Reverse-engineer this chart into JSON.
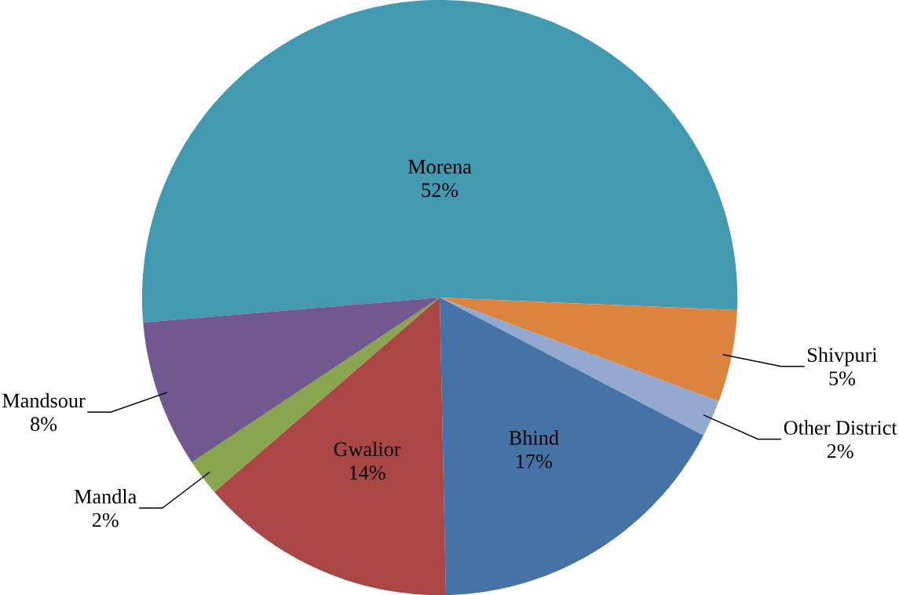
{
  "chart_data": {
    "type": "pie",
    "categories": [
      "Morena",
      "Shivpuri",
      "Other District",
      "Bhind",
      "Gwalior",
      "Mandla",
      "Mandsour"
    ],
    "values": [
      52,
      5,
      2,
      17,
      14,
      2,
      8
    ],
    "value_labels": [
      "52%",
      "5%",
      "2%",
      "17%",
      "14%",
      "2%",
      "8%"
    ],
    "colors": [
      "#4399b0",
      "#db843d",
      "#93a9cf",
      "#4572a7",
      "#aa4643",
      "#89a54e",
      "#71588f"
    ]
  }
}
